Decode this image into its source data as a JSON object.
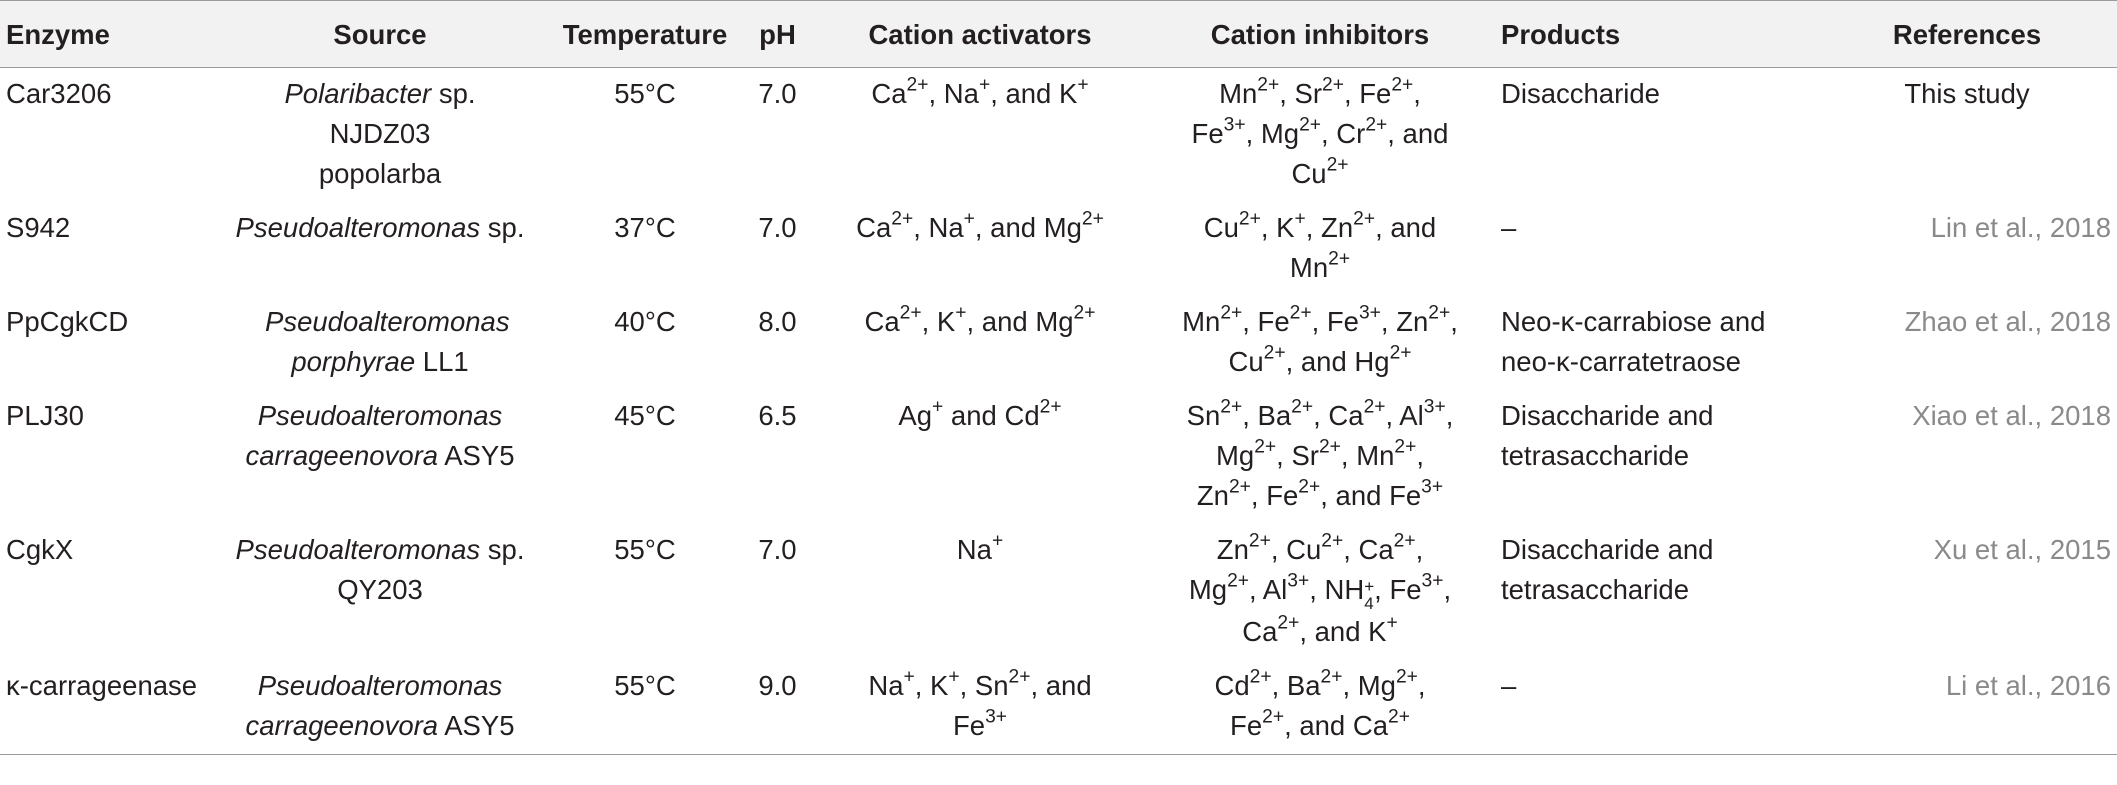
{
  "table": {
    "headers": [
      "Enzyme",
      "Source",
      "Temperature",
      "pH",
      "Cation activators",
      "Cation inhibitors",
      "Products",
      "References"
    ],
    "rows": [
      {
        "enzyme": "Car3206",
        "source": [
          "Polaribacter",
          " sp. NJDZ03 popolarba"
        ],
        "temperature": "55°C",
        "ph": "7.0",
        "activators": [
          [
            "Ca",
            "2+",
            ", "
          ],
          [
            "Na",
            "+",
            ", and "
          ],
          [
            "K",
            "+",
            ""
          ]
        ],
        "inhibitors": [
          [
            "Mn",
            "2+",
            ", "
          ],
          [
            "Sr",
            "2+",
            ", "
          ],
          [
            "Fe",
            "2+",
            ", "
          ],
          [
            "Fe",
            "3+",
            ", "
          ],
          [
            "Mg",
            "2+",
            ", "
          ],
          [
            "Cr",
            "2+",
            ", and "
          ],
          [
            "Cu",
            "2+",
            ""
          ]
        ],
        "products": "Disaccharide",
        "reference": "This study"
      },
      {
        "enzyme": "S942",
        "source": [
          "Pseudoalteromonas",
          " sp."
        ],
        "temperature": "37°C",
        "ph": "7.0",
        "activators": [
          [
            "Ca",
            "2+",
            ", "
          ],
          [
            "Na",
            "+",
            ", and "
          ],
          [
            "Mg",
            "2+",
            ""
          ]
        ],
        "inhibitors": [
          [
            "Cu",
            "2+",
            ", "
          ],
          [
            "K",
            "+",
            ", "
          ],
          [
            "Zn",
            "2+",
            ", and "
          ],
          [
            "Mn",
            "2+",
            ""
          ]
        ],
        "products": "–",
        "reference": "Lin et al., 2018"
      },
      {
        "enzyme": "PpCgkCD",
        "source": [
          "Pseudoalteromonas porphyrae",
          " LL1"
        ],
        "temperature": "40°C",
        "ph": "8.0",
        "activators": [
          [
            "Ca",
            "2+",
            ", "
          ],
          [
            "K",
            "+",
            ", and "
          ],
          [
            "Mg",
            "2+",
            ""
          ]
        ],
        "inhibitors": [
          [
            "Mn",
            "2+",
            ", "
          ],
          [
            "Fe",
            "2+",
            ", "
          ],
          [
            "Fe",
            "3+",
            ", "
          ],
          [
            "Zn",
            "2+",
            ", "
          ],
          [
            "Cu",
            "2+",
            ", and "
          ],
          [
            "Hg",
            "2+",
            ""
          ]
        ],
        "products": "Neo-κ-carrabiose and neo-κ-carratetraose",
        "reference": "Zhao et al., 2018"
      },
      {
        "enzyme": "PLJ30",
        "source": [
          "Pseudoalteromonas carrageenovora",
          " ASY5"
        ],
        "temperature": "45°C",
        "ph": "6.5",
        "activators": [
          [
            "Ag",
            "+",
            " and "
          ],
          [
            "Cd",
            "2+",
            ""
          ]
        ],
        "inhibitors": [
          [
            "Sn",
            "2+",
            ", "
          ],
          [
            "Ba",
            "2+",
            ", "
          ],
          [
            "Ca",
            "2+",
            ", "
          ],
          [
            "Al",
            "3+",
            ", "
          ],
          [
            "Mg",
            "2+",
            ", "
          ],
          [
            "Sr",
            "2+",
            ", "
          ],
          [
            "Mn",
            "2+",
            ", "
          ],
          [
            "Zn",
            "2+",
            ", "
          ],
          [
            "Fe",
            "2+",
            ", and "
          ],
          [
            "Fe",
            "3+",
            ""
          ]
        ],
        "products": "Disaccharide and tetrasaccharide",
        "reference": "Xiao et al., 2018"
      },
      {
        "enzyme": "CgkX",
        "source": [
          "Pseudoalteromonas",
          " sp. QY203"
        ],
        "temperature": "55°C",
        "ph": "7.0",
        "activators": [
          [
            "Na",
            "+",
            ""
          ]
        ],
        "inhibitors": [
          [
            "Zn",
            "2+",
            ", "
          ],
          [
            "Cu",
            "2+",
            ", "
          ],
          [
            "Ca",
            "2+",
            ", "
          ],
          [
            "Mg",
            "2+",
            ", "
          ],
          [
            "Al",
            "3+",
            ", "
          ],
          [
            "NH",
            "+|4",
            ", "
          ],
          [
            "Fe",
            "3+",
            ", "
          ],
          [
            "Ca",
            "2+",
            ", and "
          ],
          [
            "K",
            "+",
            ""
          ]
        ],
        "products": "Disaccharide and tetrasaccharide",
        "reference": "Xu et al., 2015"
      },
      {
        "enzyme": "κ-carrageenase",
        "source": [
          "Pseudoalteromonas carrageenovora",
          " ASY5"
        ],
        "temperature": "55°C",
        "ph": "9.0",
        "activators": [
          [
            "Na",
            "+",
            ", "
          ],
          [
            "K",
            "+",
            ", "
          ],
          [
            "Sn",
            "2+",
            ", and "
          ],
          [
            "Fe",
            "3+",
            ""
          ]
        ],
        "inhibitors": [
          [
            "Cd",
            "2+",
            ", "
          ],
          [
            "Ba",
            "2+",
            ", "
          ],
          [
            "Mg",
            "2+",
            ", "
          ],
          [
            "Fe",
            "2+",
            ", and "
          ],
          [
            "Ca",
            "2+",
            ""
          ]
        ],
        "products": "–",
        "reference": "Li et al., 2016"
      }
    ]
  }
}
